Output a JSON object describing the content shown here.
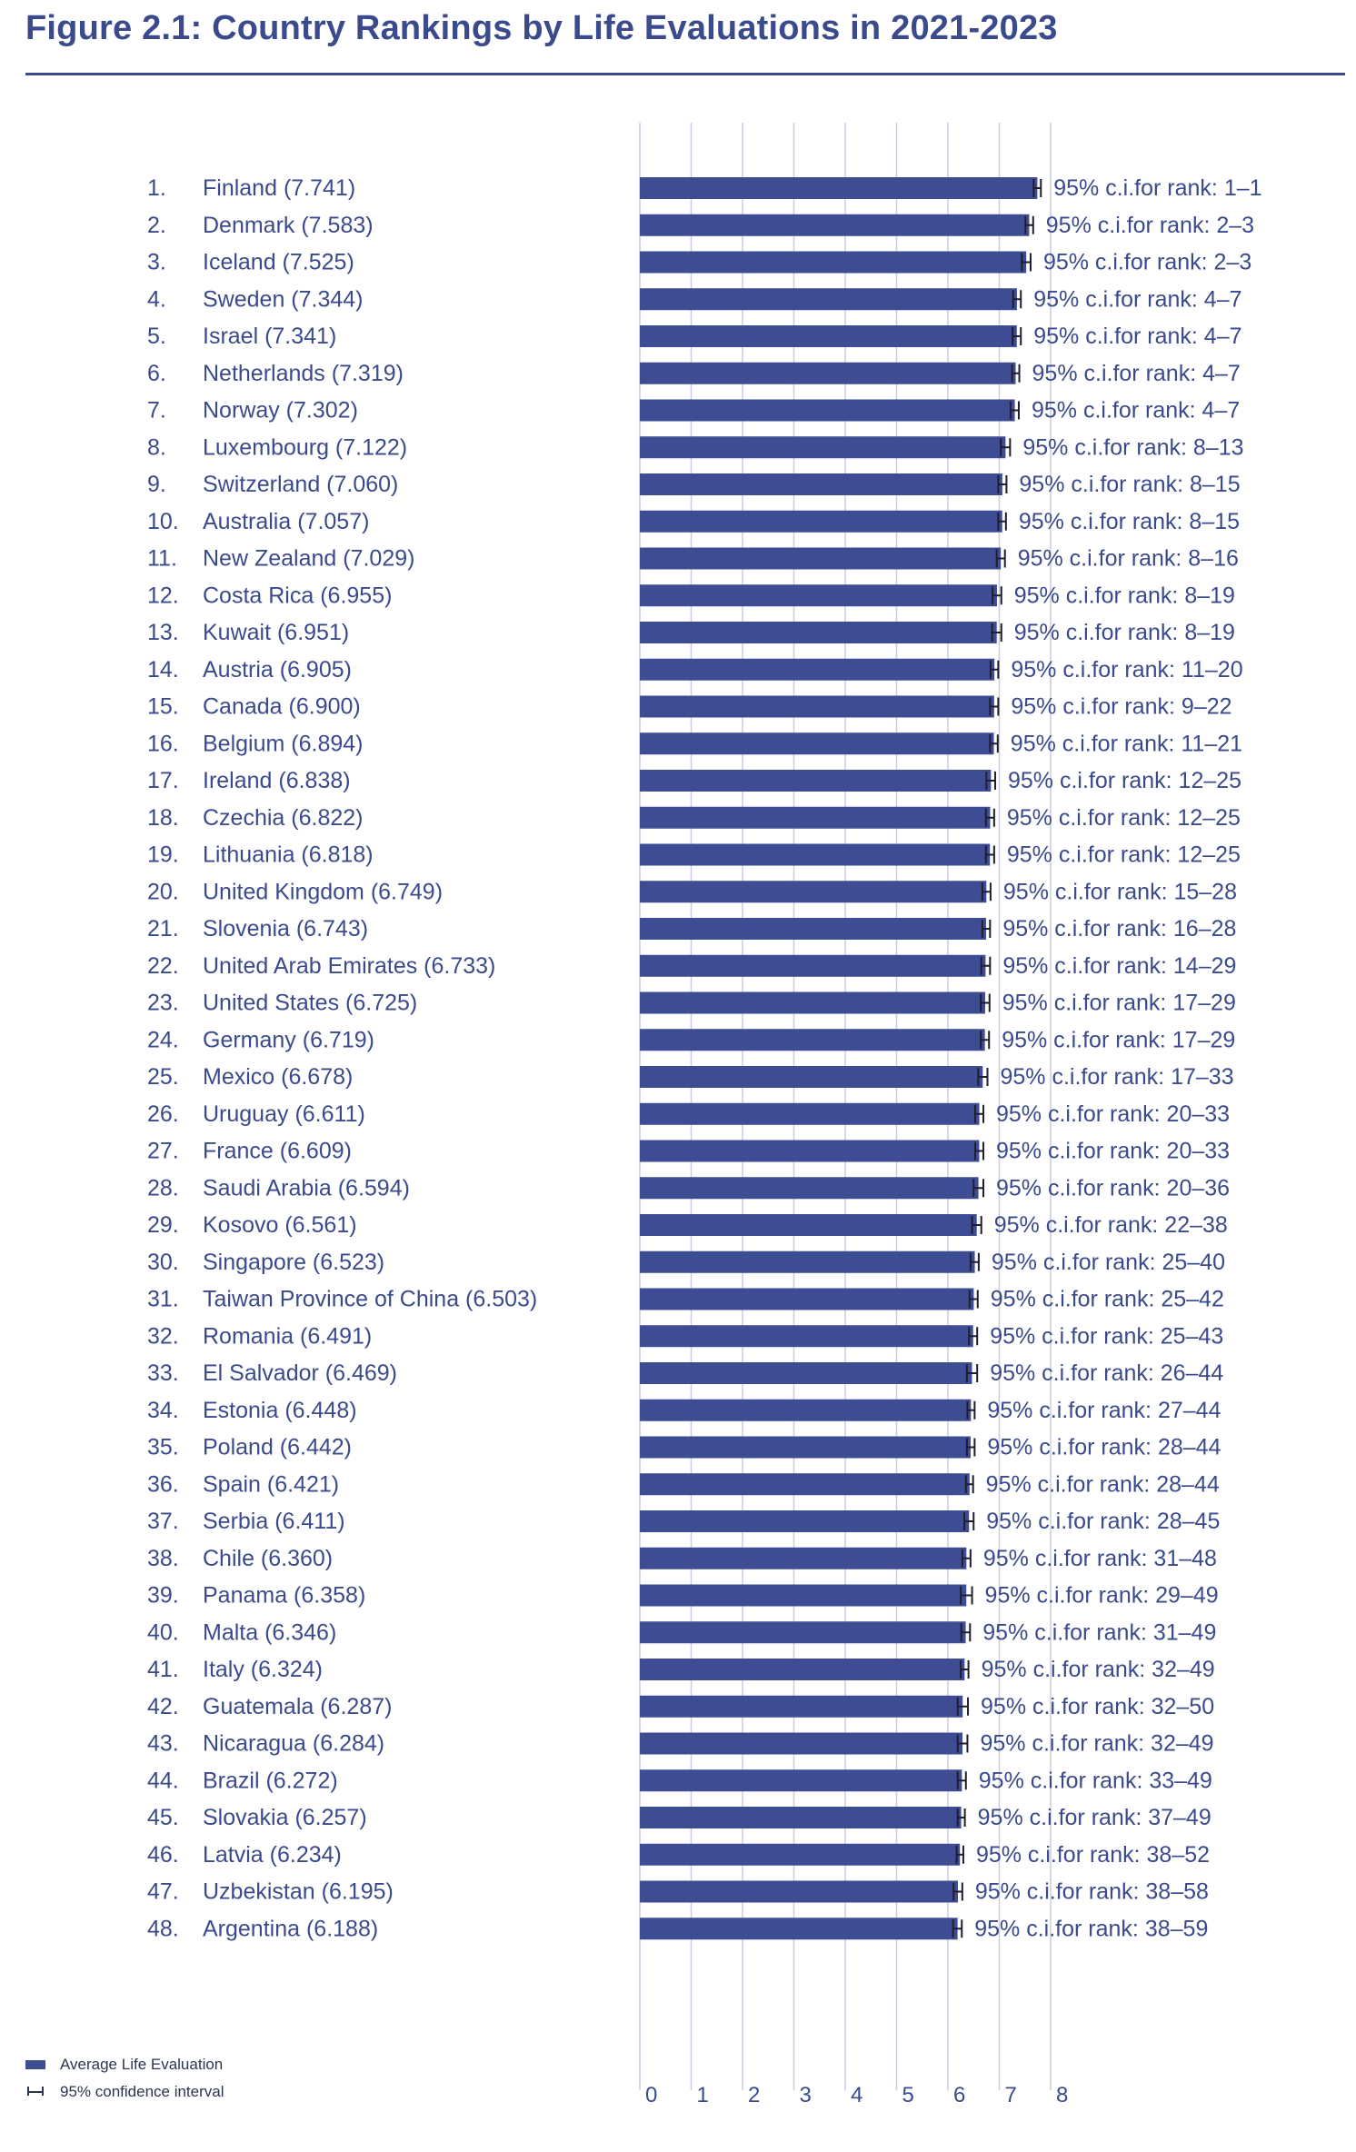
{
  "title": "Figure 2.1: Country Rankings by Life Evaluations in 2021-2023",
  "legend": {
    "bar_label": "Average Life Evaluation",
    "ci_label": "95% confidence interval"
  },
  "colors": {
    "bar": "#3e4c94",
    "text": "#3a4a8c",
    "grid": "#c9cde0",
    "error": "#1e1e2e"
  },
  "chart_data": {
    "type": "bar",
    "orientation": "horizontal",
    "xlim": [
      0,
      8
    ],
    "x_ticks": [
      "0",
      "1",
      "2",
      "3",
      "4",
      "5",
      "6",
      "7",
      "8"
    ],
    "grid": true,
    "legend_position": "bottom-left",
    "rows": [
      {
        "rank": "1.",
        "country": "Finland (7.741)",
        "value": 7.741,
        "ci": [
          7.67,
          7.81
        ],
        "rank_ci": "95% c.i.for rank: 1–1"
      },
      {
        "rank": "2.",
        "country": "Denmark (7.583)",
        "value": 7.583,
        "ci": [
          7.51,
          7.66
        ],
        "rank_ci": "95% c.i.for rank: 2–3"
      },
      {
        "rank": "3.",
        "country": "Iceland (7.525)",
        "value": 7.525,
        "ci": [
          7.44,
          7.61
        ],
        "rank_ci": "95% c.i.for rank: 2–3"
      },
      {
        "rank": "4.",
        "country": "Sweden (7.344)",
        "value": 7.344,
        "ci": [
          7.27,
          7.42
        ],
        "rank_ci": "95% c.i.for rank: 4–7"
      },
      {
        "rank": "5.",
        "country": "Israel (7.341)",
        "value": 7.341,
        "ci": [
          7.26,
          7.42
        ],
        "rank_ci": "95% c.i.for rank: 4–7"
      },
      {
        "rank": "6.",
        "country": "Netherlands (7.319)",
        "value": 7.319,
        "ci": [
          7.25,
          7.39
        ],
        "rank_ci": "95% c.i.for rank: 4–7"
      },
      {
        "rank": "7.",
        "country": "Norway (7.302)",
        "value": 7.302,
        "ci": [
          7.22,
          7.38
        ],
        "rank_ci": "95% c.i.for rank: 4–7"
      },
      {
        "rank": "8.",
        "country": "Luxembourg (7.122)",
        "value": 7.122,
        "ci": [
          7.03,
          7.21
        ],
        "rank_ci": "95% c.i.for rank: 8–13"
      },
      {
        "rank": "9.",
        "country": "Switzerland (7.060)",
        "value": 7.06,
        "ci": [
          6.98,
          7.14
        ],
        "rank_ci": "95% c.i.for rank: 8–15"
      },
      {
        "rank": "10.",
        "country": "Australia (7.057)",
        "value": 7.057,
        "ci": [
          6.98,
          7.13
        ],
        "rank_ci": "95% c.i.for rank: 8–15"
      },
      {
        "rank": "11.",
        "country": "New Zealand (7.029)",
        "value": 7.029,
        "ci": [
          6.95,
          7.11
        ],
        "rank_ci": "95% c.i.for rank: 8–16"
      },
      {
        "rank": "12.",
        "country": "Costa Rica (6.955)",
        "value": 6.955,
        "ci": [
          6.87,
          7.04
        ],
        "rank_ci": "95% c.i.for rank: 8–19"
      },
      {
        "rank": "13.",
        "country": "Kuwait (6.951)",
        "value": 6.951,
        "ci": [
          6.86,
          7.04
        ],
        "rank_ci": "95% c.i.for rank: 8–19"
      },
      {
        "rank": "14.",
        "country": "Austria (6.905)",
        "value": 6.905,
        "ci": [
          6.83,
          6.98
        ],
        "rank_ci": "95% c.i.for rank: 11–20"
      },
      {
        "rank": "15.",
        "country": "Canada (6.900)",
        "value": 6.9,
        "ci": [
          6.82,
          6.98
        ],
        "rank_ci": "95% c.i.for rank: 9–22"
      },
      {
        "rank": "16.",
        "country": "Belgium (6.894)",
        "value": 6.894,
        "ci": [
          6.82,
          6.97
        ],
        "rank_ci": "95% c.i.for rank: 11–21"
      },
      {
        "rank": "17.",
        "country": "Ireland (6.838)",
        "value": 6.838,
        "ci": [
          6.75,
          6.92
        ],
        "rank_ci": "95% c.i.for rank: 12–25"
      },
      {
        "rank": "18.",
        "country": "Czechia (6.822)",
        "value": 6.822,
        "ci": [
          6.74,
          6.9
        ],
        "rank_ci": "95% c.i.for rank: 12–25"
      },
      {
        "rank": "19.",
        "country": "Lithuania (6.818)",
        "value": 6.818,
        "ci": [
          6.74,
          6.9
        ],
        "rank_ci": "95% c.i.for rank: 12–25"
      },
      {
        "rank": "20.",
        "country": "United Kingdom (6.749)",
        "value": 6.749,
        "ci": [
          6.67,
          6.83
        ],
        "rank_ci": "95% c.i.for rank: 15–28"
      },
      {
        "rank": "21.",
        "country": "Slovenia (6.743)",
        "value": 6.743,
        "ci": [
          6.67,
          6.82
        ],
        "rank_ci": "95% c.i.for rank: 16–28"
      },
      {
        "rank": "22.",
        "country": "United Arab Emirates (6.733)",
        "value": 6.733,
        "ci": [
          6.65,
          6.82
        ],
        "rank_ci": "95% c.i.for rank: 14–29"
      },
      {
        "rank": "23.",
        "country": "United States (6.725)",
        "value": 6.725,
        "ci": [
          6.64,
          6.81
        ],
        "rank_ci": "95% c.i.for rank: 17–29"
      },
      {
        "rank": "24.",
        "country": "Germany (6.719)",
        "value": 6.719,
        "ci": [
          6.64,
          6.8
        ],
        "rank_ci": "95% c.i.for rank: 17–29"
      },
      {
        "rank": "25.",
        "country": "Mexico (6.678)",
        "value": 6.678,
        "ci": [
          6.59,
          6.77
        ],
        "rank_ci": "95% c.i.for rank: 17–33"
      },
      {
        "rank": "26.",
        "country": "Uruguay (6.611)",
        "value": 6.611,
        "ci": [
          6.53,
          6.69
        ],
        "rank_ci": "95% c.i.for rank: 20–33"
      },
      {
        "rank": "27.",
        "country": "France (6.609)",
        "value": 6.609,
        "ci": [
          6.53,
          6.69
        ],
        "rank_ci": "95% c.i.for rank: 20–33"
      },
      {
        "rank": "28.",
        "country": "Saudi Arabia (6.594)",
        "value": 6.594,
        "ci": [
          6.5,
          6.69
        ],
        "rank_ci": "95% c.i.for rank: 20–36"
      },
      {
        "rank": "29.",
        "country": "Kosovo (6.561)",
        "value": 6.561,
        "ci": [
          6.47,
          6.65
        ],
        "rank_ci": "95% c.i.for rank: 22–38"
      },
      {
        "rank": "30.",
        "country": "Singapore (6.523)",
        "value": 6.523,
        "ci": [
          6.44,
          6.6
        ],
        "rank_ci": "95% c.i.for rank: 25–40"
      },
      {
        "rank": "31.",
        "country": "Taiwan Province of China (6.503)",
        "value": 6.503,
        "ci": [
          6.42,
          6.58
        ],
        "rank_ci": "95% c.i.for rank: 25–42"
      },
      {
        "rank": "32.",
        "country": "Romania (6.491)",
        "value": 6.491,
        "ci": [
          6.41,
          6.57
        ],
        "rank_ci": "95% c.i.for rank: 25–43"
      },
      {
        "rank": "33.",
        "country": "El Salvador (6.469)",
        "value": 6.469,
        "ci": [
          6.37,
          6.57
        ],
        "rank_ci": "95% c.i.for rank: 26–44"
      },
      {
        "rank": "34.",
        "country": "Estonia (6.448)",
        "value": 6.448,
        "ci": [
          6.38,
          6.52
        ],
        "rank_ci": "95% c.i.for rank: 27–44"
      },
      {
        "rank": "35.",
        "country": "Poland (6.442)",
        "value": 6.442,
        "ci": [
          6.37,
          6.52
        ],
        "rank_ci": "95% c.i.for rank: 28–44"
      },
      {
        "rank": "36.",
        "country": "Spain (6.421)",
        "value": 6.421,
        "ci": [
          6.35,
          6.49
        ],
        "rank_ci": "95% c.i.for rank: 28–44"
      },
      {
        "rank": "37.",
        "country": "Serbia (6.411)",
        "value": 6.411,
        "ci": [
          6.32,
          6.5
        ],
        "rank_ci": "95% c.i.for rank: 28–45"
      },
      {
        "rank": "38.",
        "country": "Chile (6.360)",
        "value": 6.36,
        "ci": [
          6.28,
          6.44
        ],
        "rank_ci": "95% c.i.for rank: 31–48"
      },
      {
        "rank": "39.",
        "country": "Panama (6.358)",
        "value": 6.358,
        "ci": [
          6.25,
          6.47
        ],
        "rank_ci": "95% c.i.for rank: 29–49"
      },
      {
        "rank": "40.",
        "country": "Malta (6.346)",
        "value": 6.346,
        "ci": [
          6.26,
          6.43
        ],
        "rank_ci": "95% c.i.for rank: 31–49"
      },
      {
        "rank": "41.",
        "country": "Italy (6.324)",
        "value": 6.324,
        "ci": [
          6.25,
          6.4
        ],
        "rank_ci": "95% c.i.for rank: 32–49"
      },
      {
        "rank": "42.",
        "country": "Guatemala (6.287)",
        "value": 6.287,
        "ci": [
          6.19,
          6.39
        ],
        "rank_ci": "95% c.i.for rank: 32–50"
      },
      {
        "rank": "43.",
        "country": "Nicaragua (6.284)",
        "value": 6.284,
        "ci": [
          6.19,
          6.38
        ],
        "rank_ci": "95% c.i.for rank: 32–49"
      },
      {
        "rank": "44.",
        "country": "Brazil (6.272)",
        "value": 6.272,
        "ci": [
          6.19,
          6.35
        ],
        "rank_ci": "95% c.i.for rank: 33–49"
      },
      {
        "rank": "45.",
        "country": "Slovakia (6.257)",
        "value": 6.257,
        "ci": [
          6.19,
          6.33
        ],
        "rank_ci": "95% c.i.for rank: 37–49"
      },
      {
        "rank": "46.",
        "country": "Latvia (6.234)",
        "value": 6.234,
        "ci": [
          6.17,
          6.3
        ],
        "rank_ci": "95% c.i.for rank: 38–52"
      },
      {
        "rank": "47.",
        "country": "Uzbekistan (6.195)",
        "value": 6.195,
        "ci": [
          6.11,
          6.28
        ],
        "rank_ci": "95% c.i.for rank: 38–58"
      },
      {
        "rank": "48.",
        "country": "Argentina (6.188)",
        "value": 6.188,
        "ci": [
          6.1,
          6.27
        ],
        "rank_ci": "95% c.i.for rank: 38–59"
      }
    ]
  }
}
